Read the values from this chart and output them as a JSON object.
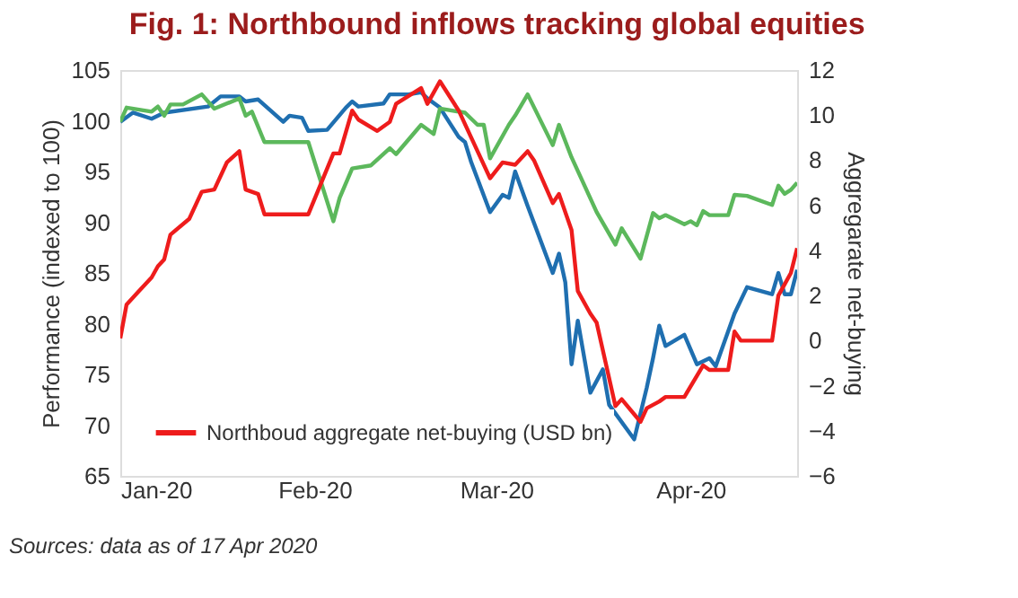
{
  "chart_data": {
    "type": "line",
    "title": "Fig. 1: Northbound inflows tracking global equities",
    "ylabel": "Performance (indexed to 100)",
    "y2label": "Aggregarate net-buying",
    "annotations": [
      "Sources: data as of 17 Apr 2020"
    ],
    "xlim": [
      "2020-01-01",
      "2020-04-18"
    ],
    "xticks": [
      {
        "value": "2020-01-01",
        "label": "Jan-20"
      },
      {
        "value": "2020-02-01",
        "label": "Feb-20"
      },
      {
        "value": "2020-03-01",
        "label": "Mar-20"
      },
      {
        "value": "2020-04-01",
        "label": "Apr-20"
      }
    ],
    "ylim": [
      65,
      105
    ],
    "yticks": [
      65,
      70,
      75,
      80,
      85,
      90,
      95,
      100,
      105
    ],
    "y2lim": [
      -6,
      12
    ],
    "y2ticks": [
      -6,
      -4,
      -2,
      0,
      2,
      4,
      6,
      8,
      10,
      12
    ],
    "grid": false,
    "legend": "bottom left",
    "line_style": "solid",
    "series": [
      {
        "color": "#1f6fb0",
        "x": [
          "2020-01-01",
          "2020-01-03",
          "2020-01-06",
          "2020-01-08",
          "2020-01-15",
          "2020-01-17",
          "2020-01-20",
          "2020-01-21",
          "2020-01-23",
          "2020-01-27",
          "2020-01-28",
          "2020-01-30",
          "2020-01-31",
          "2020-02-03",
          "2020-02-06",
          "2020-02-07",
          "2020-02-08",
          "2020-02-12",
          "2020-02-13",
          "2020-02-16",
          "2020-02-18",
          "2020-02-19",
          "2020-02-21",
          "2020-02-24",
          "2020-02-25",
          "2020-02-26",
          "2020-02-29",
          "2020-03-02",
          "2020-03-03",
          "2020-03-04",
          "2020-03-06",
          "2020-03-10",
          "2020-03-11",
          "2020-03-12",
          "2020-03-13",
          "2020-03-14",
          "2020-03-16",
          "2020-03-18",
          "2020-03-19",
          "2020-03-23",
          "2020-03-25",
          "2020-03-26",
          "2020-03-27",
          "2020-03-28",
          "2020-03-31",
          "2020-04-02",
          "2020-04-04",
          "2020-04-05",
          "2020-04-08",
          "2020-04-10",
          "2020-04-14",
          "2020-04-15",
          "2020-04-16",
          "2020-04-17",
          "2020-04-18"
        ],
        "values": [
          99.9,
          100.8,
          100.2,
          100.8,
          101.4,
          102.4,
          102.4,
          101.9,
          102.1,
          99.9,
          100.5,
          100.3,
          99.0,
          99.1,
          101.3,
          101.9,
          101.4,
          101.7,
          102.6,
          102.6,
          102.8,
          102.2,
          101.3,
          98.4,
          97.9,
          95.9,
          91.0,
          92.7,
          92.4,
          95.0,
          91.6,
          85.0,
          86.9,
          84.1,
          76.0,
          80.3,
          73.2,
          75.5,
          72.0,
          68.6,
          73.7,
          76.6,
          79.8,
          77.8,
          78.9,
          76.0,
          76.6,
          75.8,
          81.0,
          83.6,
          82.9,
          85.0,
          82.9,
          82.9,
          85.3
        ]
      },
      {
        "color": "#5cb85c",
        "x": [
          "2020-01-01",
          "2020-01-02",
          "2020-01-06",
          "2020-01-07",
          "2020-01-08",
          "2020-01-09",
          "2020-01-11",
          "2020-01-14",
          "2020-01-16",
          "2020-01-20",
          "2020-01-21",
          "2020-01-22",
          "2020-01-24",
          "2020-01-31",
          "2020-02-04",
          "2020-02-05",
          "2020-02-07",
          "2020-02-10",
          "2020-02-13",
          "2020-02-14",
          "2020-02-18",
          "2020-02-20",
          "2020-02-21",
          "2020-02-25",
          "2020-02-27",
          "2020-02-28",
          "2020-02-29",
          "2020-03-03",
          "2020-03-04",
          "2020-03-06",
          "2020-03-10",
          "2020-03-11",
          "2020-03-13",
          "2020-03-17",
          "2020-03-20",
          "2020-03-21",
          "2020-03-24",
          "2020-03-26",
          "2020-03-27",
          "2020-03-28",
          "2020-03-31",
          "2020-04-01",
          "2020-04-02",
          "2020-04-03",
          "2020-04-04",
          "2020-04-07",
          "2020-04-08",
          "2020-04-10",
          "2020-04-14",
          "2020-04-15",
          "2020-04-16",
          "2020-04-17",
          "2020-04-18"
        ],
        "values": [
          99.9,
          101.3,
          100.9,
          101.4,
          100.5,
          101.6,
          101.6,
          102.6,
          101.2,
          102.2,
          100.5,
          100.9,
          97.9,
          97.9,
          90.1,
          92.4,
          95.3,
          95.6,
          97.3,
          96.7,
          99.6,
          98.7,
          101.2,
          100.8,
          99.6,
          99.6,
          96.3,
          99.6,
          100.5,
          102.6,
          97.6,
          99.6,
          96.4,
          91.0,
          87.8,
          89.4,
          86.4,
          90.9,
          90.4,
          90.7,
          89.8,
          90.1,
          89.7,
          91.1,
          90.7,
          90.7,
          92.7,
          92.6,
          91.7,
          93.6,
          92.8,
          93.2,
          93.9
        ]
      },
      {
        "name": "Northboud aggregate net-buying (USD bn)",
        "color": "#ee1c1c",
        "axis": "y2",
        "x": [
          "2020-01-01",
          "2020-01-02",
          "2020-01-04",
          "2020-01-06",
          "2020-01-07",
          "2020-01-08",
          "2020-01-09",
          "2020-01-12",
          "2020-01-14",
          "2020-01-16",
          "2020-01-18",
          "2020-01-20",
          "2020-01-21",
          "2020-01-23",
          "2020-01-24",
          "2020-01-31",
          "2020-02-04",
          "2020-02-05",
          "2020-02-07",
          "2020-02-08",
          "2020-02-11",
          "2020-02-13",
          "2020-02-14",
          "2020-02-18",
          "2020-02-19",
          "2020-02-21",
          "2020-02-24",
          "2020-02-27",
          "2020-02-29",
          "2020-03-02",
          "2020-03-04",
          "2020-03-06",
          "2020-03-07",
          "2020-03-10",
          "2020-03-11",
          "2020-03-13",
          "2020-03-14",
          "2020-03-16",
          "2020-03-17",
          "2020-03-20",
          "2020-03-21",
          "2020-03-24",
          "2020-03-25",
          "2020-03-27",
          "2020-03-28",
          "2020-03-31",
          "2020-04-03",
          "2020-04-04",
          "2020-04-07",
          "2020-04-08",
          "2020-04-09",
          "2020-04-14",
          "2020-04-15",
          "2020-04-16",
          "2020-04-17",
          "2020-04-18"
        ],
        "values": [
          0.1,
          1.6,
          2.2,
          2.8,
          3.3,
          3.6,
          4.7,
          5.4,
          6.6,
          6.7,
          7.9,
          8.4,
          6.7,
          6.5,
          5.6,
          5.6,
          8.3,
          8.3,
          10.2,
          9.8,
          9.3,
          9.7,
          10.5,
          11.2,
          10.5,
          11.5,
          10.2,
          8.4,
          7.2,
          7.9,
          7.8,
          8.4,
          8.0,
          6.1,
          6.5,
          4.9,
          2.2,
          1.2,
          0.8,
          -2.9,
          -2.6,
          -3.6,
          -3.0,
          -2.7,
          -2.5,
          -2.5,
          -1.1,
          -1.3,
          -1.3,
          0.4,
          0.0,
          0.0,
          2.0,
          2.5,
          3.0,
          4.1
        ]
      }
    ]
  }
}
